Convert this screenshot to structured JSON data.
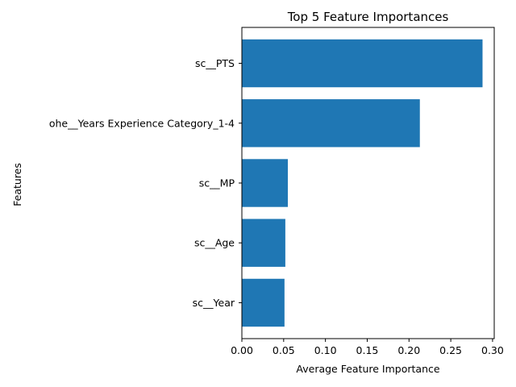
{
  "chart_data": {
    "type": "bar",
    "orientation": "horizontal",
    "title": "Top 5 Feature Importances",
    "xlabel": "Average Feature Importance",
    "ylabel": "Features",
    "categories": [
      "sc__PTS",
      "ohe__Years Experience Category_1-4",
      "sc__MP",
      "sc__Age",
      "sc__Year"
    ],
    "values": [
      0.288,
      0.213,
      0.055,
      0.052,
      0.051
    ],
    "xlim": [
      0,
      0.302
    ],
    "xticks": [
      0.0,
      0.05,
      0.1,
      0.15,
      0.2,
      0.25,
      0.3
    ],
    "xtick_labels": [
      "0.00",
      "0.05",
      "0.10",
      "0.15",
      "0.20",
      "0.25",
      "0.30"
    ],
    "bar_color": "#1f77b4",
    "grid": false,
    "legend": "none"
  }
}
